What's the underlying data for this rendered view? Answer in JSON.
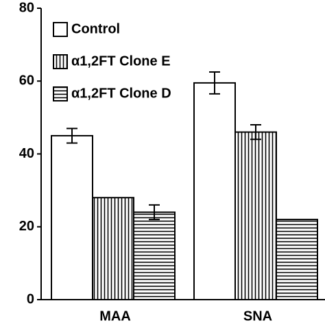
{
  "chart_data": {
    "type": "bar",
    "categories": [
      "MAA",
      "SNA"
    ],
    "series": [
      {
        "name": "Control",
        "color": "#000000",
        "pattern": "none",
        "values": [
          45,
          59.5
        ],
        "errors": [
          2,
          3
        ]
      },
      {
        "name": "α1,2FT Clone E",
        "color": "#000000",
        "pattern": "vertical",
        "values": [
          28,
          46
        ],
        "errors": [
          null,
          2
        ]
      },
      {
        "name": "α1,2FT Clone D",
        "color": "#000000",
        "pattern": "horizontal",
        "values": [
          24,
          22
        ],
        "errors": [
          2,
          null
        ]
      }
    ],
    "ylim": [
      0,
      80
    ],
    "yticks": [
      0,
      20,
      40,
      60,
      80
    ],
    "legend": "upper left"
  }
}
